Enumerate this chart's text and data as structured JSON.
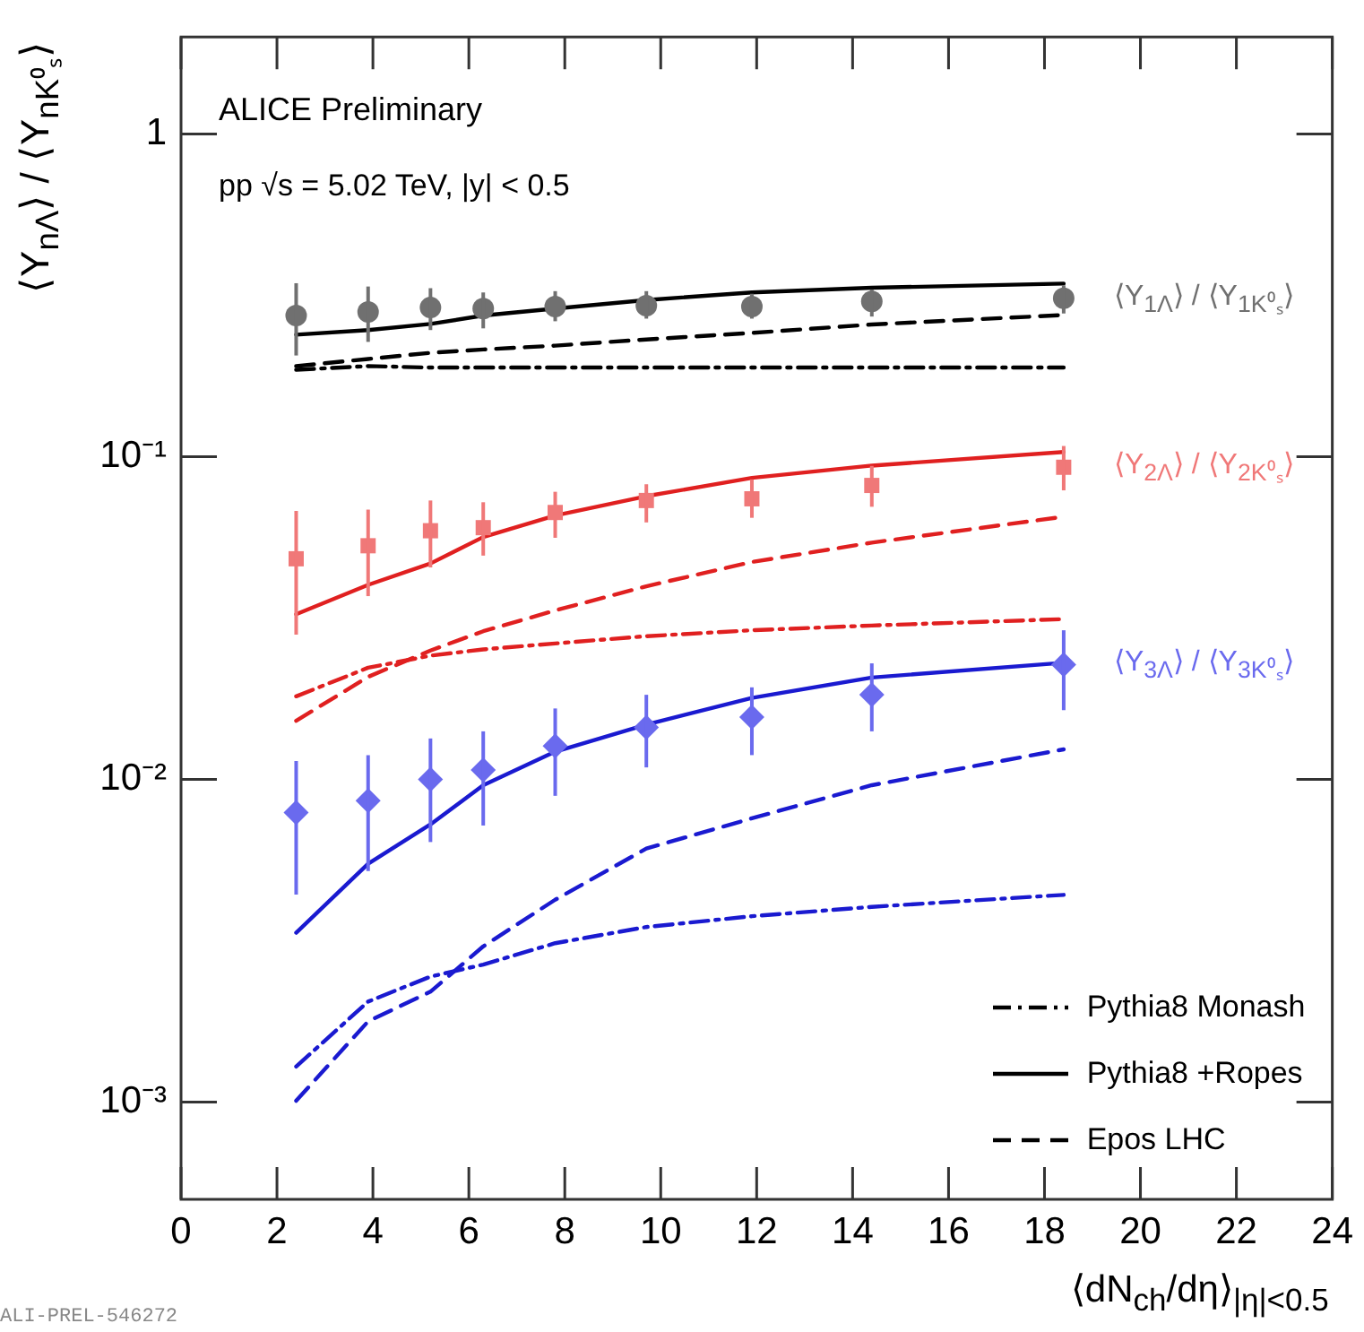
{
  "chart_data": {
    "type": "scatter",
    "title": "ALICE Preliminary",
    "subtitle": "pp √s = 5.02 TeV, |y| < 0.5",
    "xlabel": "⟨dN$_{ch}$/dη⟩$_{|η|<0.5}$",
    "ylabel": "⟨Y$_{nΛ}$⟩ / ⟨Y$_{nK⁰ₛ}$⟩",
    "x": [
      2.4,
      3.9,
      5.2,
      6.3,
      7.8,
      9.7,
      11.9,
      14.4,
      18.4
    ],
    "series": [
      {
        "name": "⟨Y$_{1Λ}$⟩ / ⟨Y$_{1K⁰ₛ}$⟩",
        "type": "scatter",
        "marker": "circle",
        "color": "#707070",
        "values": [
          0.274,
          0.281,
          0.29,
          0.288,
          0.292,
          0.294,
          0.292,
          0.303,
          0.31
        ],
        "errors": [
          [
            0.206,
            0.345
          ],
          [
            0.227,
            0.337
          ],
          [
            0.247,
            0.333
          ],
          [
            0.25,
            0.323
          ],
          [
            0.263,
            0.326
          ],
          [
            0.268,
            0.326
          ],
          [
            0.268,
            0.32
          ],
          [
            0.272,
            0.33
          ],
          [
            0.278,
            0.34
          ]
        ]
      },
      {
        "name": "⟨Y$_{2Λ}$⟩ / ⟨Y$_{2K⁰ₛ}$⟩",
        "type": "scatter",
        "marker": "square",
        "color": "#f07878",
        "values": [
          0.0483,
          0.053,
          0.059,
          0.0603,
          0.0672,
          0.0732,
          0.0741,
          0.0815,
          0.0928
        ],
        "errors": [
          [
            0.0281,
            0.0679
          ],
          [
            0.037,
            0.0686
          ],
          [
            0.0454,
            0.0732
          ],
          [
            0.0494,
            0.0723
          ],
          [
            0.0561,
            0.0779
          ],
          [
            0.0626,
            0.0822
          ],
          [
            0.0647,
            0.0851
          ],
          [
            0.07,
            0.0937
          ],
          [
            0.0787,
            0.108
          ]
        ]
      },
      {
        "name": "⟨Y$_{3Λ}$⟩ / ⟨Y$_{3K⁰ₛ}$⟩",
        "type": "scatter",
        "marker": "diamond",
        "color": "#6a6aee",
        "values": [
          0.0079,
          0.0086,
          0.01,
          0.0107,
          0.0127,
          0.0145,
          0.0156,
          0.0183,
          0.0227
        ],
        "errors": [
          [
            0.0044,
            0.0114
          ],
          [
            0.0052,
            0.0119
          ],
          [
            0.0064,
            0.0134
          ],
          [
            0.0072,
            0.0141
          ],
          [
            0.0089,
            0.0166
          ],
          [
            0.0109,
            0.0183
          ],
          [
            0.0119,
            0.0193
          ],
          [
            0.0141,
            0.0229
          ],
          [
            0.0164,
            0.029
          ]
        ]
      },
      {
        "name": "Pythia8 Monash",
        "type": "line",
        "line_style": "dashdot",
        "color": "#000000",
        "values": [
          0.186,
          0.191,
          0.189,
          0.189,
          0.189,
          0.189,
          0.189,
          0.189,
          0.189
        ]
      },
      {
        "name": "Pythia8 +Ropes",
        "type": "line",
        "line_style": "solid",
        "color": "#000000",
        "values": [
          0.239,
          0.247,
          0.258,
          0.274,
          0.288,
          0.306,
          0.323,
          0.334,
          0.344
        ]
      },
      {
        "name": "Epos LHC",
        "type": "line",
        "line_style": "dashed",
        "color": "#000000",
        "values": [
          0.191,
          0.201,
          0.21,
          0.215,
          0.221,
          0.231,
          0.242,
          0.257,
          0.275
        ]
      },
      {
        "type": "line",
        "line_style": "dashdot",
        "color": "#e02020",
        "values": [
          0.0181,
          0.0222,
          0.0242,
          0.0253,
          0.0264,
          0.0278,
          0.029,
          0.03,
          0.0314
        ]
      },
      {
        "type": "line",
        "line_style": "solid",
        "color": "#e02020",
        "values": [
          0.0325,
          0.0401,
          0.0467,
          0.0564,
          0.0658,
          0.0755,
          0.086,
          0.0939,
          0.1035
        ]
      },
      {
        "type": "line",
        "line_style": "dashed",
        "color": "#e02020",
        "values": [
          0.0152,
          0.0208,
          0.0251,
          0.0288,
          0.0334,
          0.0397,
          0.0472,
          0.0542,
          0.0652
        ]
      },
      {
        "type": "line",
        "line_style": "dashdot",
        "color": "#1a1ad0",
        "values": [
          0.00129,
          0.00205,
          0.00245,
          0.00267,
          0.00311,
          0.00349,
          0.00377,
          0.00403,
          0.00439
        ]
      },
      {
        "type": "line",
        "line_style": "solid",
        "color": "#1a1ad0",
        "values": [
          0.00335,
          0.00548,
          0.00726,
          0.0096,
          0.0122,
          0.0148,
          0.0179,
          0.0207,
          0.023
        ]
      },
      {
        "type": "line",
        "line_style": "dashed",
        "color": "#1a1ad0",
        "values": [
          0.00101,
          0.00178,
          0.0022,
          0.00304,
          0.00424,
          0.00611,
          0.00758,
          0.0096,
          0.0124
        ]
      }
    ],
    "log": "y",
    "xlim": [
      0,
      24
    ],
    "xticks": [
      0,
      2,
      4,
      6,
      8,
      10,
      12,
      14,
      16,
      18,
      20,
      22,
      24
    ],
    "ylim": [
      0.0005,
      2
    ],
    "yticks": [
      {
        "value": 0.001,
        "label": "10⁻³"
      },
      {
        "value": 0.01,
        "label": "10⁻²"
      },
      {
        "value": 0.1,
        "label": "10⁻¹"
      },
      1
    ],
    "grid": false,
    "legend": "bottom right",
    "annotations": [
      "ALI-PREL-546272"
    ]
  }
}
